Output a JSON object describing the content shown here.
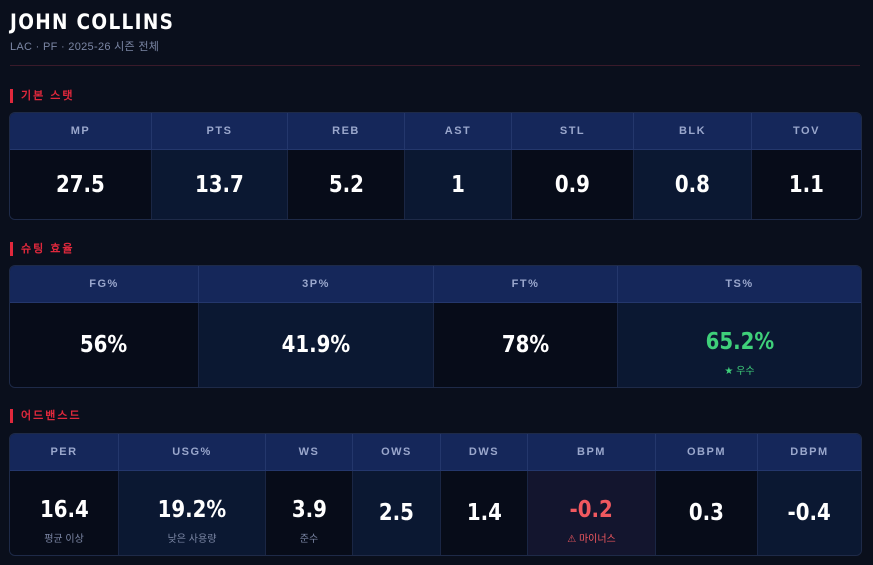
{
  "player": {
    "name": "JOHN COLLINS",
    "meta": "LAC · PF · 2025-26 시즌 전체"
  },
  "basic": {
    "title": "기본 스탯",
    "columns": [
      {
        "label": "MP",
        "value": "27.5"
      },
      {
        "label": "PTS",
        "value": "13.7"
      },
      {
        "label": "REB",
        "value": "5.2"
      },
      {
        "label": "AST",
        "value": "1"
      },
      {
        "label": "STL",
        "value": "0.9"
      },
      {
        "label": "BLK",
        "value": "0.8"
      },
      {
        "label": "TOV",
        "value": "1.1"
      }
    ]
  },
  "shooting": {
    "title": "슈팅 효율",
    "columns": [
      {
        "label": "FG%",
        "value": "56%"
      },
      {
        "label": "3P%",
        "value": "41.9%"
      },
      {
        "label": "FT%",
        "value": "78%"
      },
      {
        "label": "TS%",
        "value": "65.2%",
        "note": "★ 우수"
      }
    ]
  },
  "advanced": {
    "title": "어드밴스드",
    "columns": [
      {
        "label": "PER",
        "value": "16.4",
        "note": "평균 이상"
      },
      {
        "label": "USG%",
        "value": "19.2%",
        "note": "낮은 사용량"
      },
      {
        "label": "WS",
        "value": "3.9",
        "note": "준수"
      },
      {
        "label": "OWS",
        "value": "2.5"
      },
      {
        "label": "DWS",
        "value": "1.4"
      },
      {
        "label": "BPM",
        "value": "-0.2",
        "note": "⚠ 마이너스"
      },
      {
        "label": "OBPM",
        "value": "0.3"
      },
      {
        "label": "DBPM",
        "value": "-0.4"
      }
    ]
  },
  "colors": {
    "accent": "#e0283c",
    "good": "#3fd07a",
    "bad": "#f0585f",
    "header_bg": "#15275a",
    "page_bg": "#0a0f1c"
  }
}
